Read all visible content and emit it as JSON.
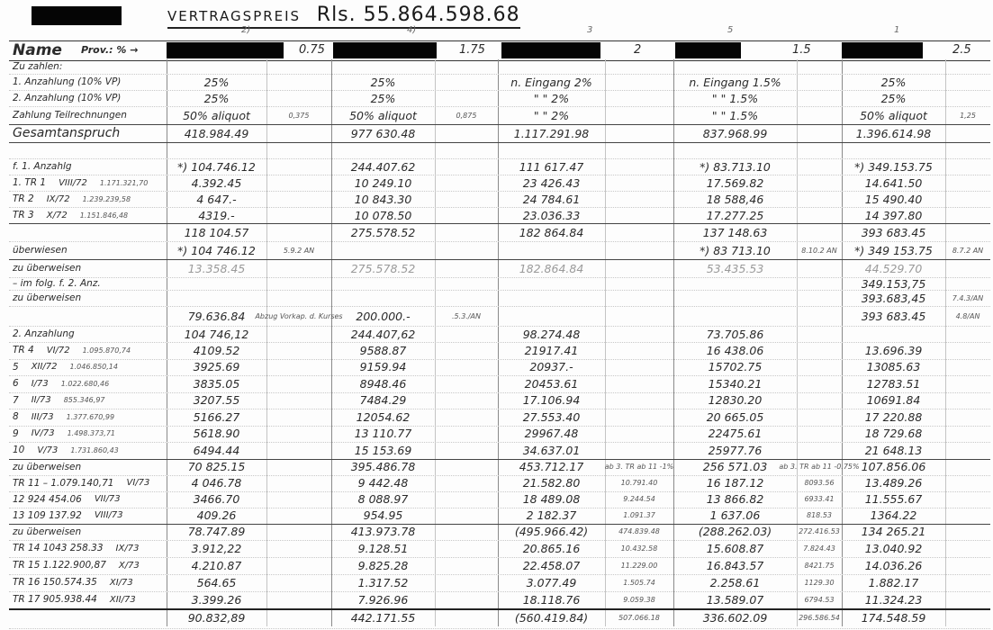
{
  "document": {
    "title_label": "VERTRAGSPREIS",
    "title_amount": "Rls. 55.864.598.68",
    "column_markers": [
      "2)",
      "4)",
      "3",
      "5",
      "1"
    ],
    "header": {
      "name_label": "Name",
      "prov_label": "Prov.: % →",
      "provisions": [
        "0.75",
        "1.75",
        "2",
        "1.5",
        "2.5"
      ],
      "names_redacted": true
    },
    "rows": [
      {
        "label": [
          "Zu zahlen:"
        ],
        "cells": [
          "",
          "",
          "",
          "",
          "",
          "",
          "",
          "",
          "",
          ""
        ]
      },
      {
        "label": [
          "1. Anzahlung (10% VP)"
        ],
        "cells": [
          "25%",
          "",
          "25%",
          "",
          "n. Eingang   2%",
          "",
          "n. Eingang 1.5%",
          "",
          "25%",
          ""
        ]
      },
      {
        "label": [
          "2. Anzahlung (10% VP)"
        ],
        "cells": [
          "25%",
          "",
          "25%",
          "",
          "\"    \"    2%",
          "",
          "\"    \"    1.5%",
          "",
          "25%",
          ""
        ]
      },
      {
        "label": [
          "Zahlung Teilrechnungen"
        ],
        "cells": [
          "50% aliquot",
          "0,375",
          "50% aliquot",
          "0,875",
          "\"    \"    2%",
          "",
          "\"    \"    1.5%",
          "",
          "50% aliquot",
          "1,25"
        ]
      },
      {
        "label": [
          "Gesamtanspruch"
        ],
        "cells": [
          "418.984.49",
          "",
          "977 630.48",
          "",
          "1.117.291.98",
          "",
          "837.968.99",
          "",
          "1.396.614.98",
          ""
        ]
      },
      {
        "label": [
          ""
        ],
        "cells": [
          "",
          "",
          "",
          "",
          "",
          "",
          "",
          "",
          "",
          ""
        ]
      },
      {
        "label": [
          "f. 1. Anzahlg"
        ],
        "cells": [
          "*) 104.746.12",
          "",
          "244.407.62",
          "",
          "111 617.47",
          "",
          "*) 83.713.10",
          "",
          "*) 349.153.75",
          ""
        ]
      },
      {
        "label": [
          "1. TR 1",
          "VIII/72",
          "1.171.321,70"
        ],
        "cells": [
          "4.392.45",
          "",
          "10 249.10",
          "",
          "23 426.43",
          "",
          "17.569.82",
          "",
          "14.641.50",
          ""
        ]
      },
      {
        "label": [
          "TR 2",
          "IX/72",
          "1.239.239,58"
        ],
        "cells": [
          "4 647.-",
          "",
          "10 843.30",
          "",
          "24 784.61",
          "",
          "18 588,46",
          "",
          "15 490.40",
          ""
        ]
      },
      {
        "label": [
          "TR 3",
          "X/72",
          "1.151.846,48"
        ],
        "cells": [
          "4319.-",
          "",
          "10 078.50",
          "",
          "23.036.33",
          "",
          "17.277.25",
          "",
          "14 397.80",
          ""
        ]
      },
      {
        "label": [
          ""
        ],
        "cells": [
          "118 104.57",
          "",
          "275.578.52",
          "",
          "182 864.84",
          "",
          "137 148.63",
          "",
          "393 683.45",
          ""
        ]
      },
      {
        "label": [
          "überwiesen"
        ],
        "cells": [
          "*) 104 746.12",
          "5.9.2 AN",
          "",
          "",
          "",
          "",
          "*) 83 713.10",
          "8.10.2 AN",
          "*) 349 153.75",
          "8.7.2 AN"
        ]
      },
      {
        "label": [
          "zu überweisen"
        ],
        "cells": [
          "13.358.45",
          "",
          "275.578.52",
          "",
          "182.864.84",
          "",
          "53.435.53",
          "",
          "44.529.70",
          ""
        ]
      },
      {
        "label": [
          "– im folg. f. 2. Anz."
        ],
        "cells": [
          "",
          "",
          "",
          "",
          "",
          "",
          "",
          "",
          "349.153,75",
          ""
        ]
      },
      {
        "label": [
          "zu überweisen"
        ],
        "cells": [
          "",
          "",
          "",
          "",
          "",
          "",
          "",
          "",
          "393.683,45",
          "7.4.3/AN"
        ]
      },
      {
        "label": [
          ""
        ],
        "cells": [
          "79.636.84",
          "Abzug Vorkap. d. Kurses",
          "200.000.-",
          ".5.3./AN",
          "",
          "",
          "",
          "",
          "393 683.45",
          "4.8/AN"
        ]
      },
      {
        "label": [
          "2. Anzahlung"
        ],
        "cells": [
          "104 746,12",
          "",
          "244.407,62",
          "",
          "98.274.48",
          "",
          "73.705.86",
          "",
          "",
          ""
        ]
      },
      {
        "label": [
          "TR 4",
          "VI/72",
          "1.095.870,74"
        ],
        "cells": [
          "4109.52",
          "",
          "9588.87",
          "",
          "21917.41",
          "",
          "16 438.06",
          "",
          "13.696.39",
          ""
        ]
      },
      {
        "label": [
          "5",
          "XII/72",
          "1.046.850,14"
        ],
        "cells": [
          "3925.69",
          "",
          "9159.94",
          "",
          "20937.-",
          "",
          "15702.75",
          "",
          "13085.63",
          ""
        ]
      },
      {
        "label": [
          "6",
          "I/73",
          "1.022.680,46"
        ],
        "cells": [
          "3835.05",
          "",
          "8948.46",
          "",
          "20453.61",
          "",
          "15340.21",
          "",
          "12783.51",
          ""
        ]
      },
      {
        "label": [
          "7",
          "II/73",
          "855.346,97"
        ],
        "cells": [
          "3207.55",
          "",
          "7484.29",
          "",
          "17.106.94",
          "",
          "12830.20",
          "",
          "10691.84",
          ""
        ]
      },
      {
        "label": [
          "8",
          "III/73",
          "1.377.670,99"
        ],
        "cells": [
          "5166.27",
          "",
          "12054.62",
          "",
          "27.553.40",
          "",
          "20 665.05",
          "",
          "17 220.88",
          ""
        ]
      },
      {
        "label": [
          "9",
          "IV/73",
          "1.498.373,71"
        ],
        "cells": [
          "5618.90",
          "",
          "13 110.77",
          "",
          "29967.48",
          "",
          "22475.61",
          "",
          "18 729.68",
          ""
        ]
      },
      {
        "label": [
          "10",
          "V/73",
          "1.731.860,43"
        ],
        "cells": [
          "6494.44",
          "",
          "15 153.69",
          "",
          "34.637.01",
          "",
          "25977.76",
          "",
          "21 648.13",
          ""
        ]
      },
      {
        "label": [
          "zu überweisen"
        ],
        "cells": [
          "70 825.15",
          "",
          "395.486.78",
          "",
          "453.712.17",
          "ab 3. TR ab 11 -1%",
          "256 571.03",
          "ab 3. TR ab 11 -0.75%",
          "107.856.06",
          ""
        ]
      },
      {
        "label": [
          "TR 11 – 1.079.140,71",
          "VI/73"
        ],
        "cells": [
          "4 046.78",
          "",
          "9 442.48",
          "",
          "21.582.80",
          "10.791.40",
          "16 187.12",
          "8093.56",
          "13.489.26",
          ""
        ]
      },
      {
        "label": [
          "12   924 454.06",
          "VII/73"
        ],
        "cells": [
          "3466.70",
          "",
          "8 088.97",
          "",
          "18 489.08",
          "9.244.54",
          "13 866.82",
          "6933.41",
          "11.555.67",
          ""
        ]
      },
      {
        "label": [
          "13   109 137.92",
          "VIII/73"
        ],
        "cells": [
          "409.26",
          "",
          "954.95",
          "",
          "2 182.37",
          "1.091.37",
          "1 637.06",
          "818.53",
          "1364.22",
          ""
        ]
      },
      {
        "label": [
          "zu überweisen"
        ],
        "cells": [
          "78.747.89",
          "",
          "413.973.78",
          "",
          "(495.966.42)",
          "474.839.48",
          "(288.262.03)",
          "272.416.53",
          "134 265.21",
          ""
        ]
      },
      {
        "label": [
          "TR 14   1043 258.33",
          "IX/73"
        ],
        "cells": [
          "3.912,22",
          "",
          "9.128.51",
          "",
          "20.865.16",
          "10.432.58",
          "15.608.87",
          "7.824.43",
          "13.040.92",
          ""
        ]
      },
      {
        "label": [
          "TR 15   1.122.900,87",
          "X/73"
        ],
        "cells": [
          "4.210.87",
          "",
          "9.825.28",
          "",
          "22.458.07",
          "11.229.00",
          "16.843.57",
          "8421.75",
          "14.036.26",
          ""
        ]
      },
      {
        "label": [
          "TR 16   150.574.35",
          "XI/73"
        ],
        "cells": [
          "564.65",
          "",
          "1.317.52",
          "",
          "3.077.49",
          "1.505.74",
          "2.258.61",
          "1129.30",
          "1.882.17",
          ""
        ]
      },
      {
        "label": [
          "TR 17   905.938.44",
          "XII/73"
        ],
        "cells": [
          "3.399.26",
          "",
          "7.926.96",
          "",
          "18.118.76",
          "9.059.38",
          "13.589.07",
          "6794.53",
          "11.324.23",
          ""
        ]
      },
      {
        "label": [
          ""
        ],
        "cells": [
          "90.832,89",
          "",
          "442.171.55",
          "",
          "(560.419.84)",
          "507.066.18",
          "336.602.09",
          "296.586.54",
          "174.548.59",
          ""
        ]
      }
    ]
  }
}
